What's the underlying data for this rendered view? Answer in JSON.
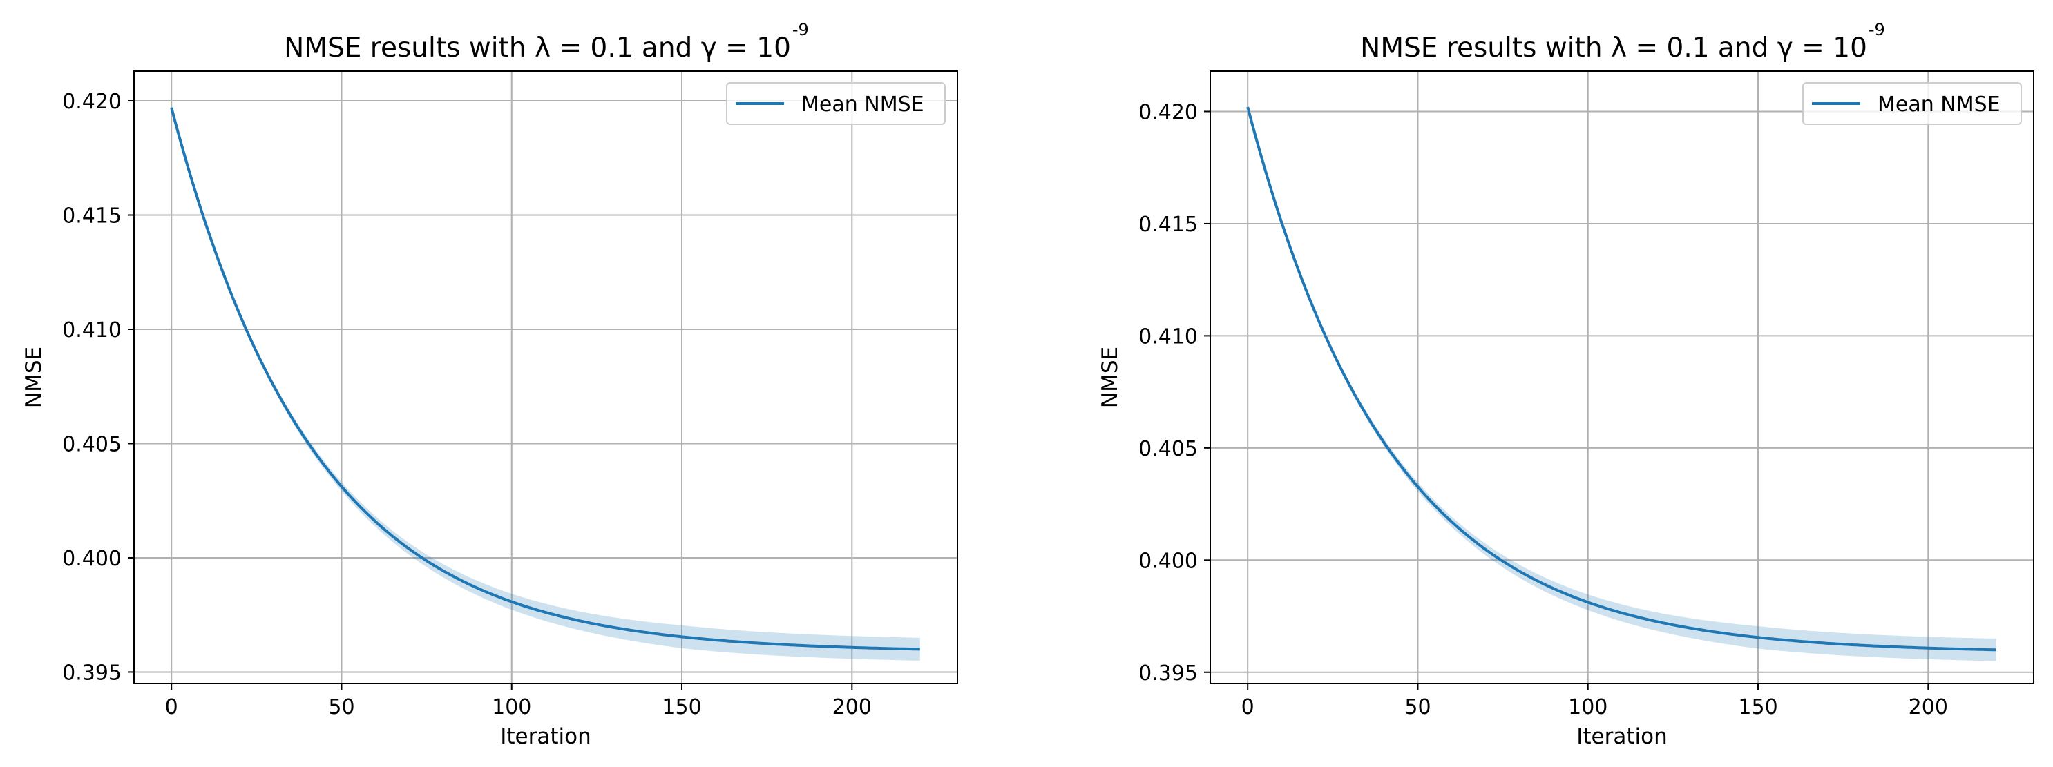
{
  "chart_data": [
    {
      "type": "line",
      "title": "NMSE results with λ = 0.1 and γ = 10",
      "title_superscript": "-9",
      "xlabel": "Iteration",
      "ylabel": "NMSE",
      "xlim": [
        -11,
        231
      ],
      "ylim": [
        0.3945,
        0.4213
      ],
      "xticks": [
        0,
        50,
        100,
        150,
        200
      ],
      "xtick_labels": [
        "0",
        "50",
        "100",
        "150",
        "200"
      ],
      "yticks": [
        0.395,
        0.4,
        0.405,
        0.41,
        0.415,
        0.42
      ],
      "ytick_labels": [
        "0.395",
        "0.400",
        "0.405",
        "0.410",
        "0.415",
        "0.420"
      ],
      "grid": true,
      "legend_position": "top-right",
      "series": [
        {
          "name": "Mean NMSE",
          "color": "#1f77b4",
          "x_start": 0,
          "x_end": 220,
          "y_start": 0.4197,
          "y_end": 0.396,
          "x": [
            0,
            10,
            20,
            30,
            40,
            50,
            60,
            70,
            80,
            90,
            100,
            110,
            120,
            130,
            140,
            150,
            160,
            170,
            180,
            190,
            200,
            210,
            220
          ],
          "y": [
            0.4197,
            0.4151,
            0.4113,
            0.4082,
            0.4056,
            0.4034,
            0.4016,
            0.4002,
            0.3991,
            0.3983,
            0.3977,
            0.3972,
            0.3968,
            0.3965,
            0.3963,
            0.3962,
            0.3961,
            0.396,
            0.396,
            0.396,
            0.396,
            0.396,
            0.396
          ],
          "band_halfwidth_start": 5e-05,
          "band_halfwidth_end": 0.0005
        }
      ]
    },
    {
      "type": "line",
      "title": "NMSE results with λ = 0.1 and γ = 10",
      "title_superscript": "-9",
      "xlabel": "Iteration",
      "ylabel": "NMSE",
      "xlim": [
        -11,
        231
      ],
      "ylim": [
        0.3945,
        0.4218
      ],
      "xticks": [
        0,
        50,
        100,
        150,
        200
      ],
      "xtick_labels": [
        "0",
        "50",
        "100",
        "150",
        "200"
      ],
      "yticks": [
        0.395,
        0.4,
        0.405,
        0.41,
        0.415,
        0.42
      ],
      "ytick_labels": [
        "0.395",
        "0.400",
        "0.405",
        "0.410",
        "0.415",
        "0.420"
      ],
      "grid": true,
      "legend_position": "top-right",
      "series": [
        {
          "name": "Mean NMSE",
          "color": "#1f77b4",
          "x_start": 0,
          "x_end": 220,
          "y_start": 0.4202,
          "y_end": 0.396,
          "x": [
            0,
            10,
            20,
            30,
            40,
            50,
            60,
            70,
            80,
            90,
            100,
            110,
            120,
            130,
            140,
            150,
            160,
            170,
            180,
            190,
            200,
            210,
            220
          ],
          "y": [
            0.4202,
            0.4155,
            0.4116,
            0.4084,
            0.4057,
            0.4035,
            0.4017,
            0.4003,
            0.3992,
            0.3983,
            0.3977,
            0.3972,
            0.3968,
            0.3965,
            0.3963,
            0.3962,
            0.3961,
            0.396,
            0.396,
            0.396,
            0.396,
            0.396,
            0.396
          ],
          "band_halfwidth_start": 5e-05,
          "band_halfwidth_end": 0.0005
        }
      ]
    }
  ]
}
